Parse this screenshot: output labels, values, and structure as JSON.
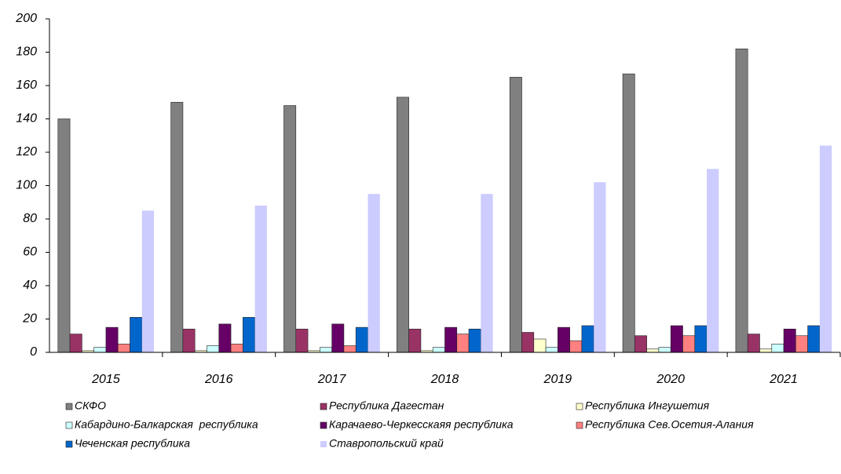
{
  "chart_data": {
    "type": "bar",
    "categories": [
      "2015",
      "2016",
      "2017",
      "2018",
      "2019",
      "2020",
      "2021"
    ],
    "series": [
      {
        "name": "СКФО",
        "color": "#808080",
        "values": [
          140,
          150,
          148,
          153,
          165,
          167,
          182
        ]
      },
      {
        "name": "Республика Дагестан",
        "color": "#993366",
        "values": [
          11,
          14,
          14,
          14,
          12,
          10,
          11
        ]
      },
      {
        "name": "Республика Ингушетия",
        "color": "#ffffcc",
        "values": [
          1,
          1,
          1,
          1,
          8,
          2,
          2
        ]
      },
      {
        "name": "Кабардино-Балкарская  республика",
        "color": "#ccffff",
        "values": [
          3,
          4,
          3,
          3,
          3,
          3,
          5
        ]
      },
      {
        "name": "Карачаево-Черкесскаяя республика",
        "color": "#660066",
        "values": [
          15,
          17,
          17,
          15,
          15,
          16,
          14
        ]
      },
      {
        "name": "Республика Сев.Осетия-Алания",
        "color": "#ff8080",
        "values": [
          5,
          5,
          4,
          11,
          7,
          10,
          10
        ]
      },
      {
        "name": "Чеченская республика",
        "color": "#0066cc",
        "values": [
          21,
          21,
          15,
          14,
          16,
          16,
          16
        ]
      },
      {
        "name": "Ставропольский край",
        "color": "#ccccff",
        "values": [
          85,
          88,
          95,
          95,
          102,
          110,
          124
        ]
      }
    ],
    "ylim": [
      0,
      200
    ],
    "yticks": [
      0,
      20,
      40,
      60,
      80,
      100,
      120,
      140,
      160,
      180,
      200
    ],
    "grid": false,
    "legend": "bottom"
  }
}
